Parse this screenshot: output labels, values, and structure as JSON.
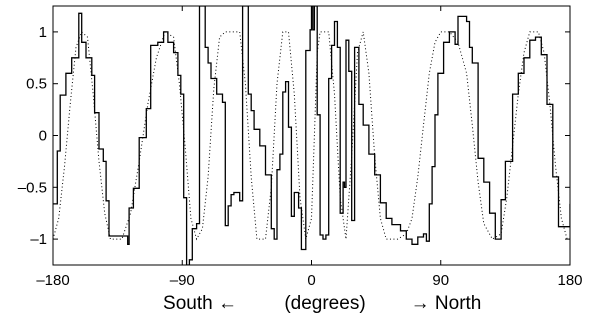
{
  "chart_data": {
    "type": "line",
    "title": "",
    "xlabel": {
      "left": "South ←",
      "center": "(degrees)",
      "right": "→ North"
    },
    "ylabel": "",
    "xlim": [
      -180,
      180
    ],
    "ylim": [
      -1.25,
      1.25
    ],
    "x_ticks": [
      -180,
      -90,
      0,
      90,
      180
    ],
    "x_tick_labels": [
      "–180",
      "–90",
      "0",
      "90",
      "180"
    ],
    "y_ticks": [
      1,
      0.5,
      0,
      -0.5,
      -1
    ],
    "y_tick_labels": [
      "1",
      "0.5",
      "0",
      "–0.5",
      "–1"
    ],
    "grid": false,
    "legend": "none",
    "series": [
      {
        "style": "solid",
        "color": "#000000",
        "kind": "step",
        "points": [
          [
            -180,
            -0.66
          ],
          [
            -177,
            -0.15
          ],
          [
            -175,
            0.39
          ],
          [
            -171,
            0.6
          ],
          [
            -167,
            0.75
          ],
          [
            -162,
            1.18
          ],
          [
            -160,
            0.9
          ],
          [
            -157,
            0.75
          ],
          [
            -153,
            0.58
          ],
          [
            -151,
            0.22
          ],
          [
            -148,
            -0.13
          ],
          [
            -145,
            -0.25
          ],
          [
            -143,
            -0.63
          ],
          [
            -141,
            -0.97
          ],
          [
            -132,
            -0.97
          ],
          [
            -128,
            -1.05
          ],
          [
            -127,
            -0.7
          ],
          [
            -124,
            -0.51
          ],
          [
            -120,
            -0.02
          ],
          [
            -115,
            0.26
          ],
          [
            -112,
            0.87
          ],
          [
            -107,
            0.9
          ],
          [
            -103,
            1.0
          ],
          [
            -100,
            0.9
          ],
          [
            -96,
            0.8
          ],
          [
            -93,
            0.58
          ],
          [
            -91,
            0.4
          ],
          [
            -89,
            -0.6
          ],
          [
            -87,
            -1.25
          ],
          [
            -85,
            -1.2
          ],
          [
            -83,
            -0.9
          ],
          [
            -80,
            -0.85
          ],
          [
            -78,
            1.25
          ],
          [
            -76,
            1.25
          ],
          [
            -74,
            0.85
          ],
          [
            -72,
            0.7
          ],
          [
            -70,
            0.55
          ],
          [
            -66,
            0.4
          ],
          [
            -62,
            0.32
          ],
          [
            -60,
            -0.87
          ],
          [
            -58,
            -0.68
          ],
          [
            -56,
            -0.57
          ],
          [
            -54,
            -0.55
          ],
          [
            -50,
            -0.63
          ],
          [
            -48,
            1.25
          ],
          [
            -46,
            1.25
          ],
          [
            -44,
            0.4
          ],
          [
            -42,
            0.24
          ],
          [
            -40,
            0.06
          ],
          [
            -36,
            -0.1
          ],
          [
            -32,
            -0.38
          ],
          [
            -28,
            -0.9
          ],
          [
            -26,
            -1.0
          ],
          [
            -24,
            -0.33
          ],
          [
            -22,
            -0.18
          ],
          [
            -20,
            0.42
          ],
          [
            -18,
            0.52
          ],
          [
            -16,
            0.08
          ],
          [
            -14,
            -0.78
          ],
          [
            -12,
            -0.55
          ],
          [
            -9,
            -0.7
          ],
          [
            -7,
            -1.1
          ],
          [
            -4,
            0.82
          ],
          [
            -1,
            1.02
          ],
          [
            0,
            1.25
          ],
          [
            1,
            1.02
          ],
          [
            2,
            1.25
          ],
          [
            4,
            0.2
          ],
          [
            6,
            -0.96
          ],
          [
            8,
            -1.0
          ],
          [
            10,
            -0.96
          ],
          [
            12,
            0.55
          ],
          [
            14,
            0.87
          ],
          [
            16,
            1.1
          ],
          [
            18,
            0.85
          ],
          [
            20,
            -0.75
          ],
          [
            22,
            -0.45
          ],
          [
            23,
            -0.5
          ],
          [
            24,
            0.92
          ],
          [
            26,
            0.62
          ],
          [
            28,
            -0.82
          ],
          [
            30,
            0.85
          ],
          [
            33,
            0.3
          ],
          [
            36,
            0.1
          ],
          [
            40,
            -0.18
          ],
          [
            44,
            -0.38
          ],
          [
            48,
            -0.65
          ],
          [
            52,
            -0.8
          ],
          [
            56,
            -0.86
          ],
          [
            62,
            -0.92
          ],
          [
            66,
            -1.0
          ],
          [
            70,
            -1.05
          ],
          [
            74,
            -0.98
          ],
          [
            78,
            -0.95
          ],
          [
            80,
            -1.02
          ],
          [
            82,
            -0.66
          ],
          [
            84,
            -0.3
          ],
          [
            86,
            0.2
          ],
          [
            88,
            0.6
          ],
          [
            92,
            0.9
          ],
          [
            96,
            1.0
          ],
          [
            100,
            0.88
          ],
          [
            102,
            1.15
          ],
          [
            108,
            1.1
          ],
          [
            110,
            0.85
          ],
          [
            112,
            0.7
          ],
          [
            116,
            -0.22
          ],
          [
            120,
            -0.45
          ],
          [
            124,
            -0.75
          ],
          [
            128,
            -1.0
          ],
          [
            132,
            -0.62
          ],
          [
            135,
            -0.25
          ],
          [
            140,
            0.4
          ],
          [
            144,
            0.6
          ],
          [
            148,
            0.75
          ],
          [
            152,
            0.92
          ],
          [
            156,
            0.95
          ],
          [
            160,
            0.78
          ],
          [
            164,
            0.3
          ],
          [
            168,
            -0.4
          ],
          [
            172,
            -0.88
          ],
          [
            176,
            -0.88
          ],
          [
            180,
            -0.66
          ]
        ]
      },
      {
        "style": "dotted",
        "color": "#000000",
        "kind": "smooth",
        "points": [
          [
            -180,
            -1.0
          ],
          [
            -176,
            -0.8
          ],
          [
            -172,
            -0.3
          ],
          [
            -168,
            0.3
          ],
          [
            -164,
            0.85
          ],
          [
            -160,
            1.0
          ],
          [
            -156,
            0.95
          ],
          [
            -152,
            0.4
          ],
          [
            -148,
            -0.25
          ],
          [
            -144,
            -0.75
          ],
          [
            -140,
            -1.0
          ],
          [
            -132,
            -1.0
          ],
          [
            -126,
            -0.75
          ],
          [
            -120,
            -0.25
          ],
          [
            -114,
            0.3
          ],
          [
            -108,
            0.75
          ],
          [
            -102,
            1.0
          ],
          [
            -96,
            0.95
          ],
          [
            -92,
            0.5
          ],
          [
            -88,
            -0.1
          ],
          [
            -84,
            -0.8
          ],
          [
            -80,
            -1.0
          ],
          [
            -76,
            -0.9
          ],
          [
            -72,
            -0.4
          ],
          [
            -68,
            0.45
          ],
          [
            -64,
            0.95
          ],
          [
            -60,
            1.0
          ],
          [
            -56,
            1.0
          ],
          [
            -50,
            1.0
          ],
          [
            -46,
            0.5
          ],
          [
            -42,
            -0.4
          ],
          [
            -38,
            -1.0
          ],
          [
            -32,
            -1.0
          ],
          [
            -28,
            -0.5
          ],
          [
            -24,
            0.5
          ],
          [
            -20,
            1.0
          ],
          [
            -16,
            1.0
          ],
          [
            -12,
            0.4
          ],
          [
            -8,
            -0.6
          ],
          [
            -4,
            -1.0
          ],
          [
            0,
            -0.8
          ],
          [
            2,
            0.0
          ],
          [
            4,
            0.8
          ],
          [
            6,
            1.0
          ],
          [
            12,
            1.0
          ],
          [
            16,
            0.4
          ],
          [
            20,
            -0.6
          ],
          [
            24,
            -1.0
          ],
          [
            28,
            -0.2
          ],
          [
            32,
            0.8
          ],
          [
            36,
            1.0
          ],
          [
            40,
            0.6
          ],
          [
            44,
            -0.2
          ],
          [
            48,
            -0.8
          ],
          [
            52,
            -1.0
          ],
          [
            60,
            -1.0
          ],
          [
            66,
            -0.95
          ],
          [
            70,
            -0.8
          ],
          [
            74,
            -0.4
          ],
          [
            78,
            0.1
          ],
          [
            82,
            0.6
          ],
          [
            86,
            0.9
          ],
          [
            90,
            1.0
          ],
          [
            96,
            1.0
          ],
          [
            102,
            0.9
          ],
          [
            108,
            0.6
          ],
          [
            112,
            0.1
          ],
          [
            116,
            -0.45
          ],
          [
            120,
            -0.85
          ],
          [
            126,
            -1.0
          ],
          [
            132,
            -0.95
          ],
          [
            136,
            -0.6
          ],
          [
            140,
            -0.1
          ],
          [
            144,
            0.4
          ],
          [
            148,
            0.8
          ],
          [
            152,
            1.0
          ],
          [
            158,
            1.0
          ],
          [
            162,
            0.8
          ],
          [
            166,
            0.3
          ],
          [
            170,
            -0.3
          ],
          [
            174,
            -0.8
          ],
          [
            178,
            -1.0
          ],
          [
            180,
            -1.0
          ]
        ]
      }
    ]
  }
}
